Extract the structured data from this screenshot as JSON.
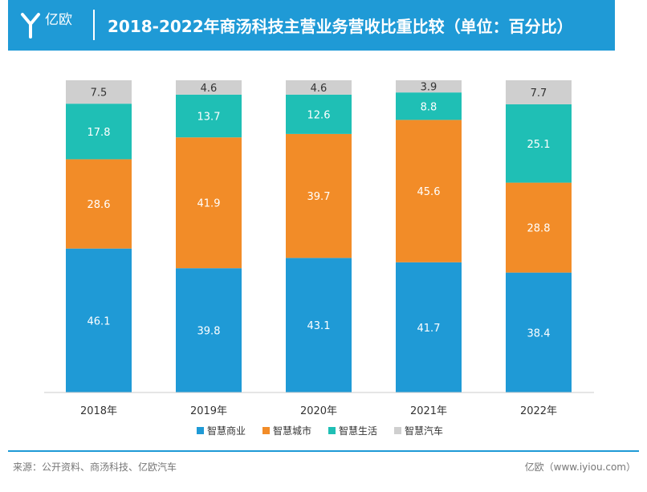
{
  "header": {
    "logo_text": "亿欧",
    "title": "2018-2022年商汤科技主营业务营收比重比较（单位：百分比）"
  },
  "colors": {
    "header_bg": "#1f9ad6",
    "智慧商业": "#1f9ad6",
    "智慧城市": "#f28c28",
    "智慧生活": "#1fbfb5",
    "智慧汽车": "#cfcfcf"
  },
  "chart_data": {
    "type": "bar",
    "stacked": true,
    "categories": [
      "2018年",
      "2019年",
      "2020年",
      "2021年",
      "2022年"
    ],
    "series": [
      {
        "name": "智慧商业",
        "values": [
          46.1,
          39.8,
          43.1,
          41.7,
          38.4
        ]
      },
      {
        "name": "智慧城市",
        "values": [
          28.6,
          41.9,
          39.7,
          45.6,
          28.8
        ]
      },
      {
        "name": "智慧生活",
        "values": [
          17.8,
          13.7,
          12.6,
          8.8,
          25.1
        ]
      },
      {
        "name": "智慧汽车",
        "values": [
          7.5,
          4.6,
          4.6,
          3.9,
          7.7
        ]
      }
    ],
    "ylim": [
      0,
      100
    ],
    "legend_position": "bottom",
    "grid": false
  },
  "footer": {
    "source": "来源：公开资料、商汤科技、亿欧汽车",
    "site": "亿欧（www.iyiou.com）"
  }
}
